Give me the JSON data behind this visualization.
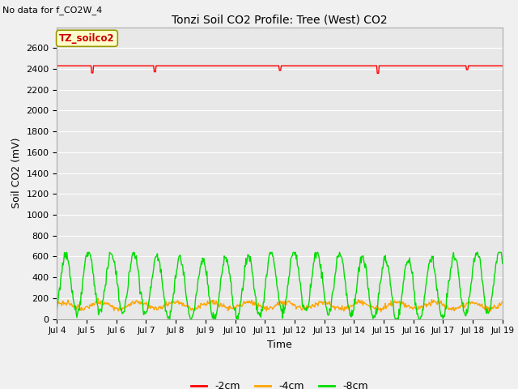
{
  "title": "Tonzi Soil CO2 Profile: Tree (West) CO2",
  "top_left_text": "No data for f_CO2W_4",
  "ylabel": "Soil CO2 (mV)",
  "xlabel": "Time",
  "ylim": [
    0,
    2800
  ],
  "yticks": [
    0,
    200,
    400,
    600,
    800,
    1000,
    1200,
    1400,
    1600,
    1800,
    2000,
    2200,
    2400,
    2600
  ],
  "xtick_labels": [
    "Jul 4",
    "Jul 5",
    "Jul 6",
    "Jul 7",
    "Jul 8",
    "Jul 9",
    "Jul 10",
    "Jul 11",
    "Jul 12",
    "Jul 13",
    "Jul 14",
    "Jul 15",
    "Jul 16",
    "Jul 17",
    "Jul 18",
    "Jul 19"
  ],
  "figure_bg_color": "#f0f0f0",
  "plot_bg_color": "#e8e8e8",
  "grid_color": "#ffffff",
  "legend_label_text": "TZ_soilco2",
  "legend_box_color": "#ffffcc",
  "legend_border_color": "#999900",
  "legend_text_color": "#cc0000",
  "line_neg2cm_color": "#ff0000",
  "line_neg4cm_color": "#ffa500",
  "line_neg8cm_color": "#00dd00",
  "neg2cm_value": 2430,
  "num_days": 15,
  "seed": 42
}
